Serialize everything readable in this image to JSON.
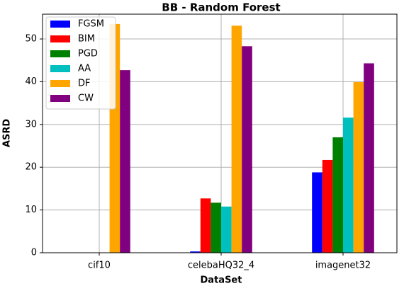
{
  "chart_data": {
    "type": "bar",
    "title": "BB - Random Forest",
    "x_label": "DataSet",
    "y_label": "ASRD",
    "categories": [
      "cif10",
      "celebaHQ32_4",
      "imagenet32"
    ],
    "series": [
      {
        "name": "FGSM",
        "color": "#0000ff",
        "values": [
          0,
          0.3,
          18.8
        ]
      },
      {
        "name": "BIM",
        "color": "#ff0000",
        "values": [
          0,
          12.7,
          21.7
        ]
      },
      {
        "name": "PGD",
        "color": "#008000",
        "values": [
          0,
          11.7,
          27.0
        ]
      },
      {
        "name": "AA",
        "color": "#00bfbf",
        "values": [
          0,
          10.8,
          31.6
        ]
      },
      {
        "name": "DF",
        "color": "#ffa500",
        "values": [
          53.5,
          53.1,
          39.9
        ]
      },
      {
        "name": "CW",
        "color": "#800080",
        "values": [
          42.7,
          48.3,
          44.3
        ]
      }
    ],
    "ylim": [
      0,
      55.8
    ],
    "yticks": [
      0,
      10,
      20,
      30,
      40,
      50
    ],
    "grid": true,
    "legend": "upper left"
  }
}
